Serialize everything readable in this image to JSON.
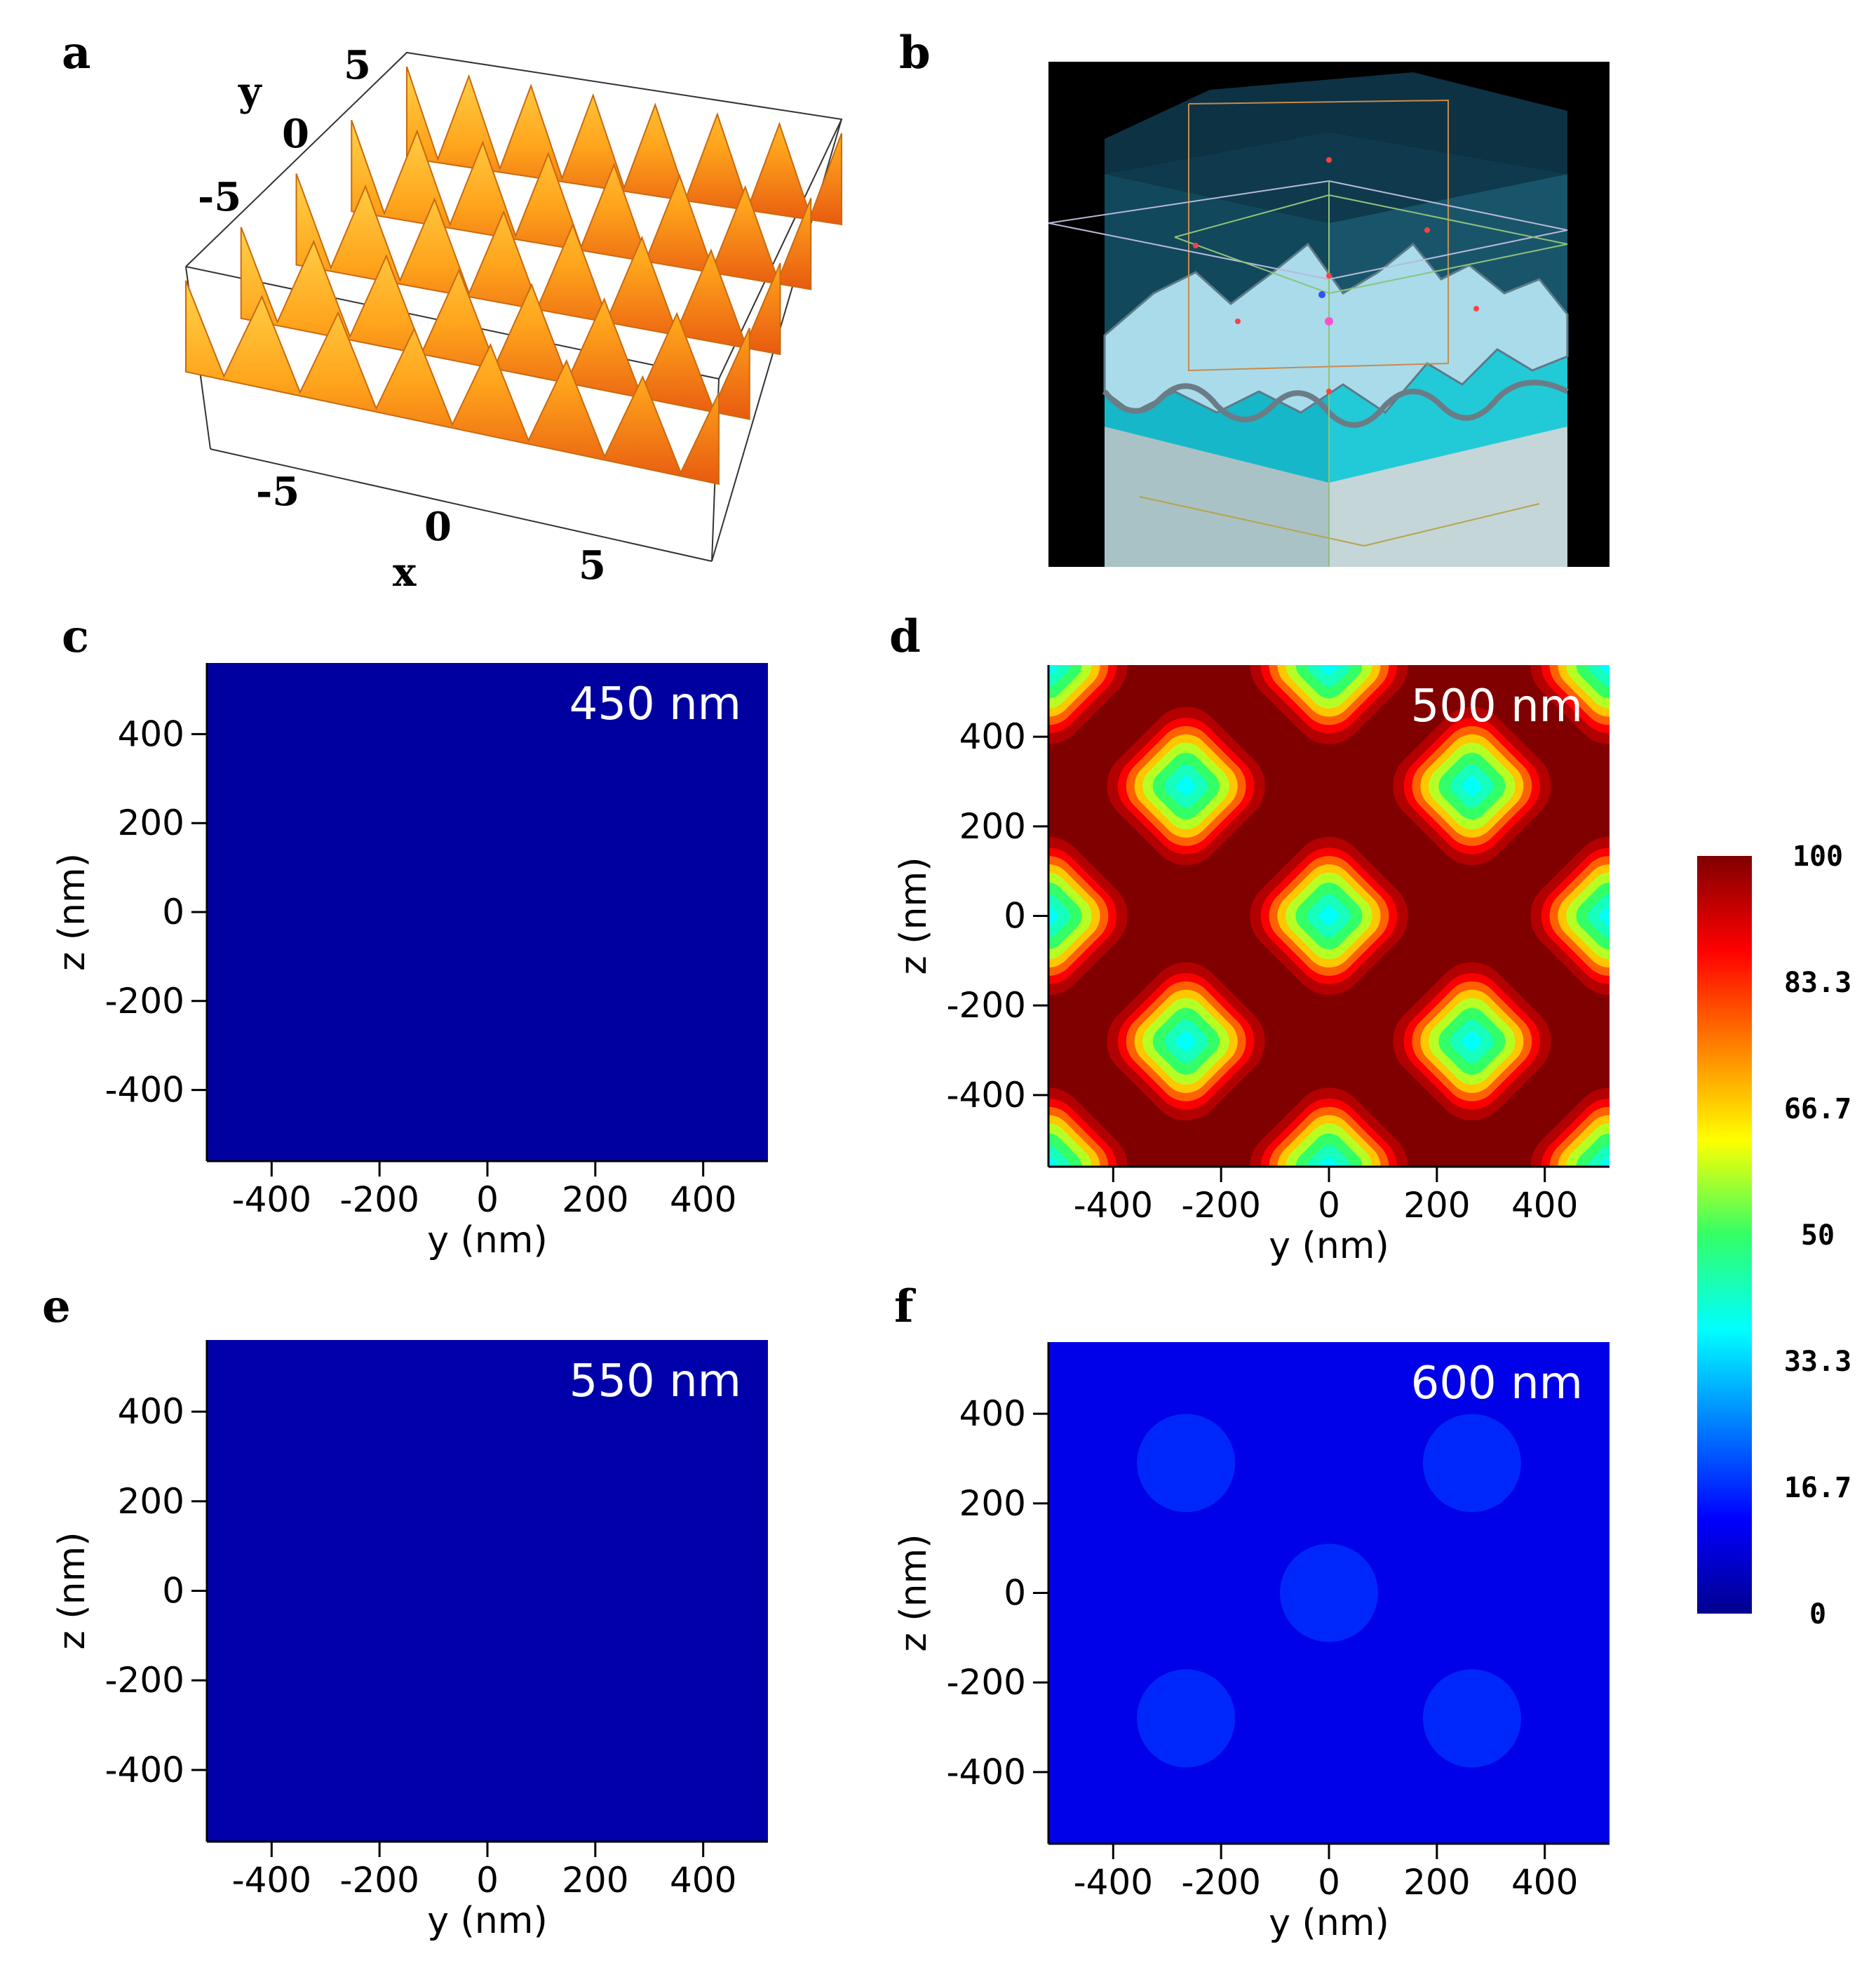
{
  "panel_letters": [
    "a",
    "b",
    "c",
    "d",
    "e",
    "f"
  ],
  "colors": {
    "surface_light": "#ffb020",
    "surface_dark": "#ee5a10",
    "sim_background": "#000000",
    "map_450": "#0d0f8a",
    "map_550": "#0c118a",
    "map_600": "#0a22d6",
    "map_500_base": "#990000"
  },
  "panel_a": {
    "y_label": "y",
    "x_label": "x",
    "y_ticks": [
      "5",
      "0",
      "-5"
    ],
    "x_ticks": [
      "-5",
      "0",
      "5"
    ]
  },
  "colorbar": {
    "ticks": [
      "100",
      "83.3",
      "66.7",
      "50",
      "33.3",
      "16.7",
      "0"
    ],
    "range": [
      0,
      100
    ],
    "colormap": "jet"
  },
  "chart_data": [
    {
      "panel": "c",
      "type": "heatmap",
      "label": "450 nm",
      "xlabel": "y (nm)",
      "ylabel": "z (nm)",
      "xlim": [
        -520,
        520
      ],
      "ylim": [
        -560,
        560
      ],
      "x_ticks": [
        "-400",
        "-200",
        "0",
        "200",
        "400"
      ],
      "y_ticks": [
        "400",
        "200",
        "0",
        "-200",
        "-400"
      ],
      "field": "uniform",
      "approx_value": 2
    },
    {
      "panel": "d",
      "type": "heatmap",
      "label": "500 nm",
      "xlabel": "y (nm)",
      "ylabel": "z (nm)",
      "xlim": [
        -520,
        520
      ],
      "ylim": [
        -560,
        560
      ],
      "x_ticks": [
        "-400",
        "-200",
        "0",
        "200",
        "400"
      ],
      "y_ticks": [
        "400",
        "200",
        "0",
        "-200",
        "-400"
      ],
      "field": "spots",
      "background_value": 100,
      "spot_centers": [
        [
          -265,
          290
        ],
        [
          265,
          290
        ],
        [
          -265,
          -280
        ],
        [
          265,
          -280
        ],
        [
          0,
          0
        ],
        [
          -520,
          0
        ],
        [
          520,
          0
        ],
        [
          0,
          560
        ],
        [
          0,
          -560
        ],
        [
          -520,
          560
        ],
        [
          520,
          560
        ],
        [
          -520,
          -560
        ],
        [
          520,
          -560
        ]
      ],
      "spot_min_value": 38
    },
    {
      "panel": "e",
      "type": "heatmap",
      "label": "550 nm",
      "xlabel": "y (nm)",
      "ylabel": "z (nm)",
      "xlim": [
        -520,
        520
      ],
      "ylim": [
        -560,
        560
      ],
      "x_ticks": [
        "-400",
        "-200",
        "0",
        "200",
        "400"
      ],
      "y_ticks": [
        "400",
        "200",
        "0",
        "-200",
        "-400"
      ],
      "field": "uniform",
      "approx_value": 3
    },
    {
      "panel": "f",
      "type": "heatmap",
      "label": "600 nm",
      "xlabel": "y (nm)",
      "ylabel": "z (nm)",
      "xlim": [
        -520,
        520
      ],
      "ylim": [
        -560,
        560
      ],
      "x_ticks": [
        "-400",
        "-200",
        "0",
        "200",
        "400"
      ],
      "y_ticks": [
        "400",
        "200",
        "0",
        "-200",
        "-400"
      ],
      "field": "weak-spots",
      "background_value": 10,
      "spot_centers": [
        [
          -265,
          290
        ],
        [
          265,
          290
        ],
        [
          -265,
          -280
        ],
        [
          265,
          -280
        ],
        [
          0,
          0
        ]
      ],
      "spot_max_value": 18
    }
  ]
}
